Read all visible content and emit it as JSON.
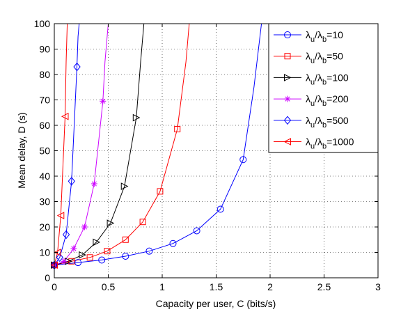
{
  "chart_data": {
    "type": "line",
    "xlabel": "Capacity per user, C (bits/s)",
    "ylabel": "Mean delay, D (s)",
    "xlim": [
      0,
      3
    ],
    "ylim": [
      0,
      100
    ],
    "x_ticks": [
      "0",
      "0.5",
      "1",
      "1.5",
      "2",
      "2.5",
      "3"
    ],
    "y_ticks": [
      "0",
      "10",
      "20",
      "30",
      "40",
      "50",
      "60",
      "70",
      "80",
      "90",
      "100"
    ],
    "grid": "on (dotted)",
    "legend_position": "top-right",
    "series": [
      {
        "name": "λu/λb=10",
        "legend_parts": {
          "lambda1": "λ",
          "sub1": "u",
          "slash": "/",
          "lambda2": "λ",
          "sub2": "b",
          "rest": "=10"
        },
        "color": "#0000ff",
        "marker": "circle",
        "points": [
          [
            0.0,
            5.0
          ],
          [
            0.22,
            6.0
          ],
          [
            0.44,
            7.0
          ],
          [
            0.66,
            8.5
          ],
          [
            0.88,
            10.5
          ],
          [
            1.1,
            13.5
          ],
          [
            1.32,
            18.5
          ],
          [
            1.54,
            27.0
          ],
          [
            1.75,
            46.5
          ],
          [
            1.85,
            75.0
          ],
          [
            1.92,
            100.0
          ]
        ],
        "marker_points": [
          [
            0.0,
            5.0
          ],
          [
            0.22,
            6.0
          ],
          [
            0.44,
            7.0
          ],
          [
            0.66,
            8.5
          ],
          [
            0.88,
            10.5
          ],
          [
            1.1,
            13.5
          ],
          [
            1.32,
            18.5
          ],
          [
            1.54,
            27.0
          ],
          [
            1.75,
            46.5
          ]
        ]
      },
      {
        "name": "λu/λb=50",
        "legend_parts": {
          "lambda1": "λ",
          "sub1": "u",
          "slash": "/",
          "lambda2": "λ",
          "sub2": "b",
          "rest": "=50"
        },
        "color": "#ff0000",
        "marker": "square",
        "points": [
          [
            0.0,
            5.0
          ],
          [
            0.16,
            6.5
          ],
          [
            0.33,
            8.0
          ],
          [
            0.49,
            10.5
          ],
          [
            0.66,
            15.0
          ],
          [
            0.82,
            22.0
          ],
          [
            0.98,
            34.0
          ],
          [
            1.14,
            58.5
          ],
          [
            1.22,
            85.0
          ],
          [
            1.25,
            100.0
          ]
        ],
        "marker_points": [
          [
            0.0,
            5.0
          ],
          [
            0.16,
            6.5
          ],
          [
            0.33,
            8.0
          ],
          [
            0.49,
            10.5
          ],
          [
            0.66,
            15.0
          ],
          [
            0.82,
            22.0
          ],
          [
            0.98,
            34.0
          ],
          [
            1.14,
            58.5
          ]
        ]
      },
      {
        "name": "λu/λb=100",
        "legend_parts": {
          "lambda1": "λ",
          "sub1": "u",
          "slash": "/",
          "lambda2": "λ",
          "sub2": "b",
          "rest": "=100"
        },
        "color": "#000000",
        "marker": "triangle-right",
        "points": [
          [
            0.0,
            5.0
          ],
          [
            0.13,
            6.5
          ],
          [
            0.26,
            9.0
          ],
          [
            0.39,
            14.0
          ],
          [
            0.52,
            21.5
          ],
          [
            0.65,
            36.0
          ],
          [
            0.76,
            63.0
          ],
          [
            0.8,
            85.0
          ],
          [
            0.83,
            100.0
          ]
        ],
        "marker_points": [
          [
            0.0,
            5.0
          ],
          [
            0.13,
            6.5
          ],
          [
            0.26,
            9.0
          ],
          [
            0.39,
            14.0
          ],
          [
            0.52,
            21.5
          ],
          [
            0.65,
            36.0
          ],
          [
            0.76,
            63.0
          ]
        ]
      },
      {
        "name": "λu/λb=200",
        "legend_parts": {
          "lambda1": "λ",
          "sub1": "u",
          "slash": "/",
          "lambda2": "λ",
          "sub2": "b",
          "rest": "=200"
        },
        "color": "#cc00ff",
        "marker": "asterisk",
        "points": [
          [
            0.0,
            5.0
          ],
          [
            0.09,
            6.5
          ],
          [
            0.18,
            11.5
          ],
          [
            0.28,
            20.0
          ],
          [
            0.37,
            37.0
          ],
          [
            0.45,
            69.5
          ],
          [
            0.47,
            85.0
          ],
          [
            0.5,
            100.0
          ]
        ],
        "marker_points": [
          [
            0.0,
            5.0
          ],
          [
            0.09,
            6.5
          ],
          [
            0.18,
            11.5
          ],
          [
            0.28,
            20.0
          ],
          [
            0.37,
            37.0
          ],
          [
            0.45,
            69.5
          ]
        ]
      },
      {
        "name": "λu/λb=500",
        "legend_parts": {
          "lambda1": "λ",
          "sub1": "u",
          "slash": "/",
          "lambda2": "λ",
          "sub2": "b",
          "rest": "=500"
        },
        "color": "#0000ff",
        "marker": "diamond",
        "points": [
          [
            0.0,
            5.0
          ],
          [
            0.05,
            8.0
          ],
          [
            0.11,
            17.0
          ],
          [
            0.16,
            38.0
          ],
          [
            0.21,
            83.0
          ],
          [
            0.22,
            95.0
          ],
          [
            0.23,
            100.0
          ]
        ],
        "marker_points": [
          [
            0.0,
            5.0
          ],
          [
            0.05,
            8.0
          ],
          [
            0.11,
            17.0
          ],
          [
            0.16,
            38.0
          ],
          [
            0.21,
            83.0
          ]
        ]
      },
      {
        "name": "λu/λb=1000",
        "legend_parts": {
          "lambda1": "λ",
          "sub1": "u",
          "slash": "/",
          "lambda2": "λ",
          "sub2": "b",
          "rest": "=1000"
        },
        "color": "#ff0000",
        "marker": "triangle-left",
        "points": [
          [
            0.0,
            5.0
          ],
          [
            0.03,
            10.0
          ],
          [
            0.06,
            24.5
          ],
          [
            0.1,
            63.5
          ],
          [
            0.11,
            85.0
          ],
          [
            0.12,
            100.0
          ]
        ],
        "marker_points": [
          [
            0.0,
            5.0
          ],
          [
            0.03,
            10.0
          ],
          [
            0.06,
            24.5
          ],
          [
            0.1,
            63.5
          ]
        ]
      }
    ]
  }
}
